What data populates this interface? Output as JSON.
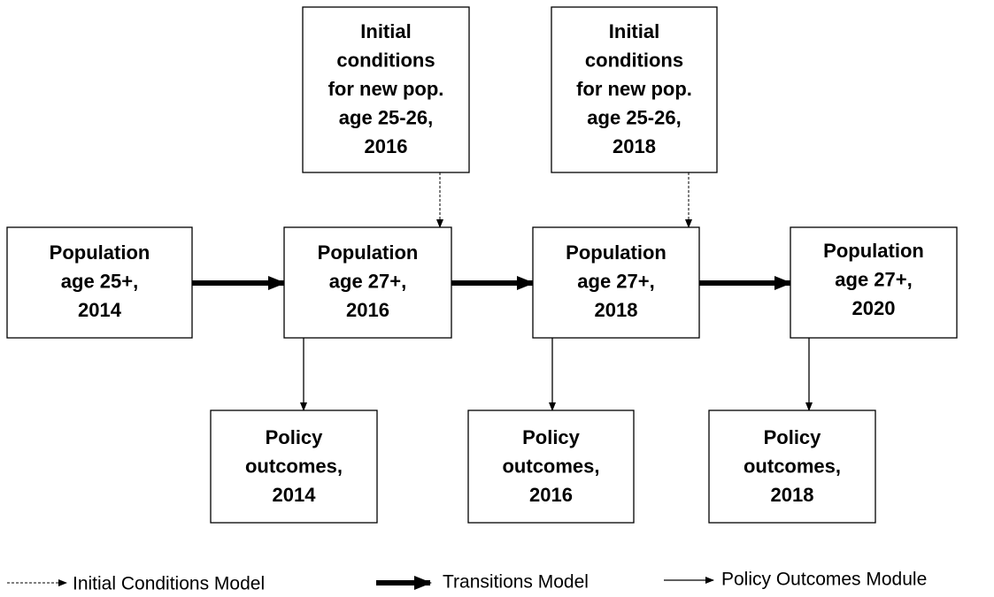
{
  "nodes": [
    {
      "lines": [
        "Initial",
        "conditions",
        "for new pop.",
        "age 25-26,",
        "2016"
      ]
    },
    {
      "lines": [
        "Initial",
        "conditions",
        "for new pop.",
        "age 25-26,",
        "2018"
      ]
    },
    {
      "lines": [
        "Population",
        "age 25+,",
        "2014"
      ]
    },
    {
      "lines": [
        "Population",
        "age 27+,",
        "2016"
      ]
    },
    {
      "lines": [
        "Population",
        "age 27+,",
        "2018"
      ]
    },
    {
      "lines": [
        "Population",
        "age 27+,",
        "2020"
      ]
    },
    {
      "lines": [
        "Policy",
        "outcomes,",
        "2014"
      ]
    },
    {
      "lines": [
        "Policy",
        "outcomes,",
        "2016"
      ]
    },
    {
      "lines": [
        "Policy",
        "outcomes,",
        "2018"
      ]
    }
  ],
  "legend": [
    {
      "label": "Initial Conditions Model"
    },
    {
      "label": "Transitions Model"
    },
    {
      "label": "Policy Outcomes Module"
    }
  ]
}
